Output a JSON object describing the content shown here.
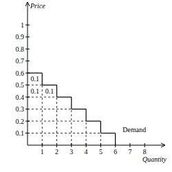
{
  "chart_data": {
    "type": "line",
    "line_style": "step",
    "color": "#000000",
    "x_label": "Quantity",
    "y_label": "Price",
    "x": [
      0,
      1,
      2,
      3,
      4,
      5,
      6
    ],
    "values": [
      0.6,
      0.5,
      0.4,
      0.3,
      0.2,
      0.1,
      0
    ],
    "xlim": [
      0,
      9.4
    ],
    "xticks": [
      1,
      2,
      3,
      4,
      5,
      6,
      7,
      8
    ],
    "ylim": [
      0,
      1.19
    ],
    "yticks": [
      0.1,
      0.2,
      0.3,
      0.4,
      0.5,
      0.6,
      0.7,
      0.8,
      0.9,
      1
    ],
    "grid": false,
    "annotations": [
      {
        "text": "0.1",
        "x": 0.5,
        "y": 0.55
      },
      {
        "text": "0.1",
        "x": 0.5,
        "y": 0.45
      },
      {
        "text": "0.1",
        "x": 1.5,
        "y": 0.45
      },
      {
        "text": "Demand",
        "x": 7.3,
        "y": 0.13
      }
    ]
  }
}
